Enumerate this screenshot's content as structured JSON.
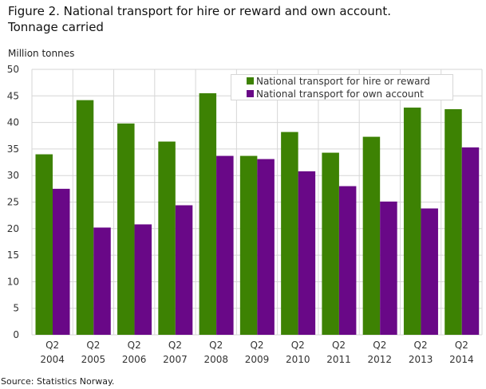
{
  "chart_data": {
    "type": "bar",
    "title_line1": "Figure 2. National transport for hire or reward and own account.",
    "title_line2": "Tonnage carried",
    "ylabel": "Million tonnes",
    "xlabel": "",
    "ylim": [
      0,
      50
    ],
    "yticks": [
      0,
      5,
      10,
      15,
      20,
      25,
      30,
      35,
      40,
      45,
      50
    ],
    "grid": true,
    "legend_position": "top-right",
    "categories": [
      [
        "Q2",
        "2004"
      ],
      [
        "Q2",
        "2005"
      ],
      [
        "Q2",
        "2006"
      ],
      [
        "Q2",
        "2007"
      ],
      [
        "Q2",
        "2008"
      ],
      [
        "Q2",
        "2009"
      ],
      [
        "Q2",
        "2010"
      ],
      [
        "Q2",
        "2011"
      ],
      [
        "Q2",
        "2012"
      ],
      [
        "Q2",
        "2013"
      ],
      [
        "Q2",
        "2014"
      ]
    ],
    "series": [
      {
        "name": "National transport for hire or reward",
        "color": "#3d8203",
        "values": [
          34.0,
          44.2,
          39.8,
          36.4,
          45.5,
          33.7,
          38.2,
          34.3,
          37.3,
          42.8,
          42.5
        ]
      },
      {
        "name": "National transport for own account",
        "color": "#690887",
        "values": [
          27.5,
          20.2,
          20.8,
          24.4,
          33.7,
          33.1,
          30.8,
          28.0,
          25.1,
          23.8,
          35.3
        ]
      }
    ]
  },
  "source": "Source: Statistics Norway."
}
